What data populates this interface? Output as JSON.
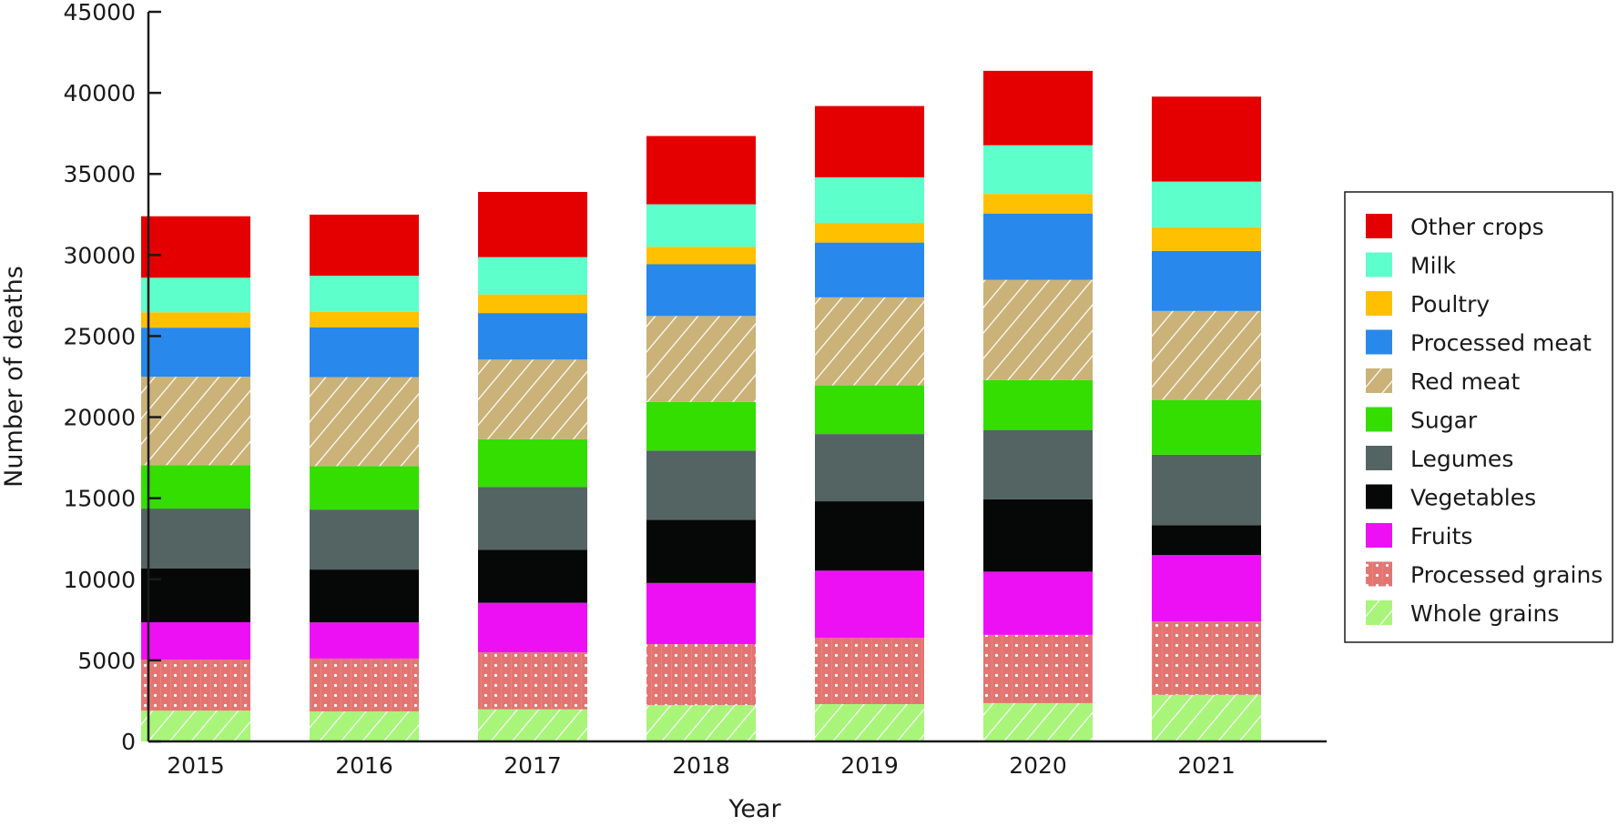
{
  "chart_data": {
    "type": "bar",
    "stacked": true,
    "title": "",
    "xlabel": "Year",
    "ylabel": "Number of deaths",
    "ylim": [
      0,
      45000
    ],
    "yticks": [
      0,
      5000,
      10000,
      15000,
      20000,
      25000,
      30000,
      35000,
      40000,
      45000
    ],
    "grid": false,
    "legend_position": "right",
    "categories": [
      "2015",
      "2016",
      "2017",
      "2018",
      "2019",
      "2020",
      "2021"
    ],
    "series": [
      {
        "name": "Whole grains",
        "color": "#a8f57a",
        "pattern": "hatch",
        "values": [
          1900,
          1850,
          1980,
          2230,
          2300,
          2360,
          2870
        ]
      },
      {
        "name": "Processed grains",
        "color": "#e27572",
        "pattern": "dots",
        "values": [
          3150,
          3260,
          3510,
          3770,
          4080,
          4210,
          4530
        ]
      },
      {
        "name": "Fruits",
        "color": "#ee10f5",
        "pattern": "solid",
        "values": [
          2300,
          2230,
          3060,
          3770,
          4150,
          3900,
          4090
        ]
      },
      {
        "name": "Vegetables",
        "color": "#060807",
        "pattern": "solid",
        "values": [
          3310,
          3260,
          3260,
          3890,
          4280,
          4460,
          1850
        ]
      },
      {
        "name": "Legumes",
        "color": "#536463",
        "pattern": "solid",
        "values": [
          3700,
          3700,
          3890,
          4280,
          4150,
          4280,
          4340
        ]
      },
      {
        "name": "Sugar",
        "color": "#34de00",
        "pattern": "solid",
        "values": [
          2680,
          2680,
          2940,
          3000,
          3000,
          3070,
          3380
        ]
      },
      {
        "name": "Red meat",
        "color": "#cab278",
        "pattern": "hatch",
        "values": [
          5450,
          5490,
          4910,
          5300,
          5430,
          6190,
          5490
        ]
      },
      {
        "name": "Processed meat",
        "color": "#2888eb",
        "pattern": "solid",
        "values": [
          3030,
          3060,
          2870,
          3190,
          3380,
          4090,
          3700
        ]
      },
      {
        "name": "Poultry",
        "color": "#ffc000",
        "pattern": "solid",
        "values": [
          950,
          960,
          1150,
          1080,
          1210,
          1210,
          1470
        ]
      },
      {
        "name": "Milk",
        "color": "#5dffcb",
        "pattern": "solid",
        "values": [
          2130,
          2230,
          2300,
          2620,
          2810,
          3000,
          2810
        ]
      },
      {
        "name": "Other crops",
        "color": "#e40000",
        "pattern": "solid",
        "values": [
          3790,
          3770,
          4020,
          4210,
          4400,
          4590,
          5240
        ]
      }
    ]
  }
}
